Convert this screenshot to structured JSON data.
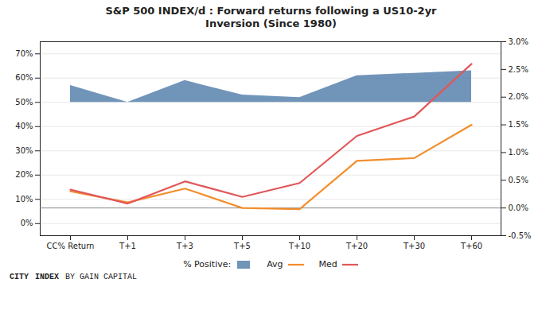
{
  "chart_data": {
    "type": "line",
    "title": "S&P 500 INDEX/d : Forward returns following a US10-2yr\nInversion (Since 1980)",
    "categories": [
      "CC% Return",
      "T+1",
      "T+3",
      "T+5",
      "T+10",
      "T+20",
      "T+30",
      "T+60"
    ],
    "series": [
      {
        "name": "% Positive:",
        "type": "area",
        "axis": "y",
        "baseline": 0.5,
        "values": [
          0.57,
          0.5,
          0.59,
          0.53,
          0.52,
          0.61,
          0.62,
          0.63
        ]
      },
      {
        "name": "Avg",
        "type": "line",
        "axis": "y2",
        "values": [
          0.003,
          0.001,
          0.0035,
          0.0,
          -0.0002,
          0.0085,
          0.009,
          0.015
        ]
      },
      {
        "name": "Med",
        "type": "line",
        "axis": "y2",
        "values": [
          0.0033,
          0.0008,
          0.0048,
          0.002,
          0.0045,
          0.013,
          0.0165,
          0.026
        ]
      }
    ],
    "ylim": [
      -0.05,
      0.75
    ],
    "yticks": [
      {
        "value": 0.0,
        "label": "0%"
      },
      {
        "value": 0.1,
        "label": "10%"
      },
      {
        "value": 0.2,
        "label": "20%"
      },
      {
        "value": 0.3,
        "label": "30%"
      },
      {
        "value": 0.4,
        "label": "40%"
      },
      {
        "value": 0.5,
        "label": "50%"
      },
      {
        "value": 0.6,
        "label": "60%"
      },
      {
        "value": 0.7,
        "label": "70%"
      }
    ],
    "y2lim": [
      -0.005,
      0.03
    ],
    "y2ticks": [
      {
        "value": -0.005,
        "label": "-0.5%"
      },
      {
        "value": 0.0,
        "label": "0.0%"
      },
      {
        "value": 0.005,
        "label": "0.5%"
      },
      {
        "value": 0.01,
        "label": "1.0%"
      },
      {
        "value": 0.015,
        "label": "1.5%"
      },
      {
        "value": 0.02,
        "label": "2.0%"
      },
      {
        "value": 0.025,
        "label": "2.5%"
      },
      {
        "value": 0.03,
        "label": "3.0%"
      }
    ],
    "y2_rule": 0.0,
    "grid": true,
    "legend": "bottom",
    "annotations": [
      "CITY",
      "INDEX",
      "BY GAIN CAPITAL"
    ]
  }
}
